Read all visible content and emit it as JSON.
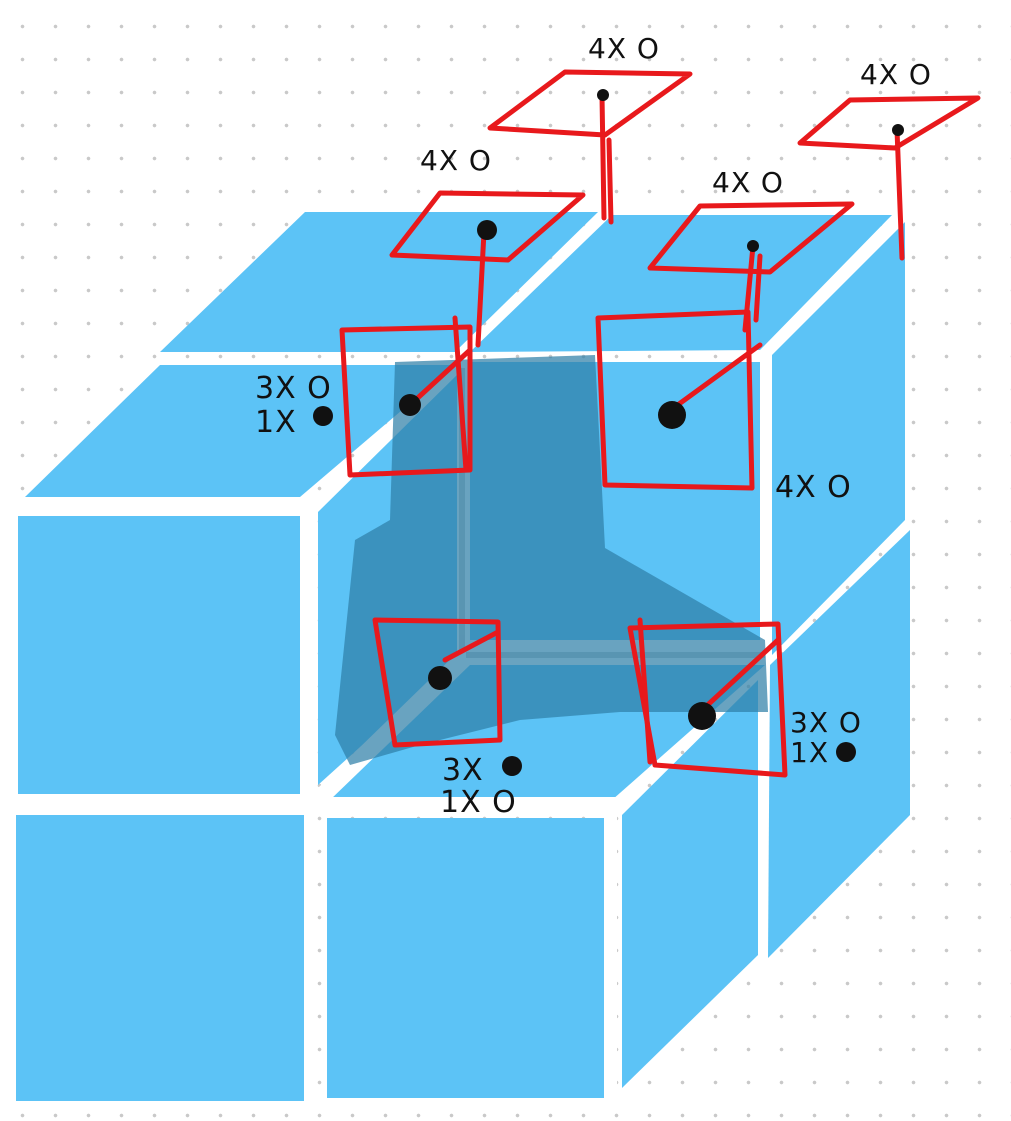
{
  "colors": {
    "cube_face": "#5cc3f6",
    "cube_gap": "#ffffff",
    "shadow": "#2f7fa8",
    "sketch_red": "#e8191c",
    "ink": "#111111"
  },
  "labels": {
    "top_left_back": "4X O",
    "top_middle": "4X O",
    "top_right": "4X O",
    "top_right_front": "4X O",
    "right_upper": "4X O",
    "left_upper_line1": "3X O",
    "left_upper_line2": "1X",
    "bottom_middle_line1": "3X",
    "bottom_middle_line2": "1X O",
    "right_lower_line1": "3X O",
    "right_lower_line2": "1X"
  }
}
